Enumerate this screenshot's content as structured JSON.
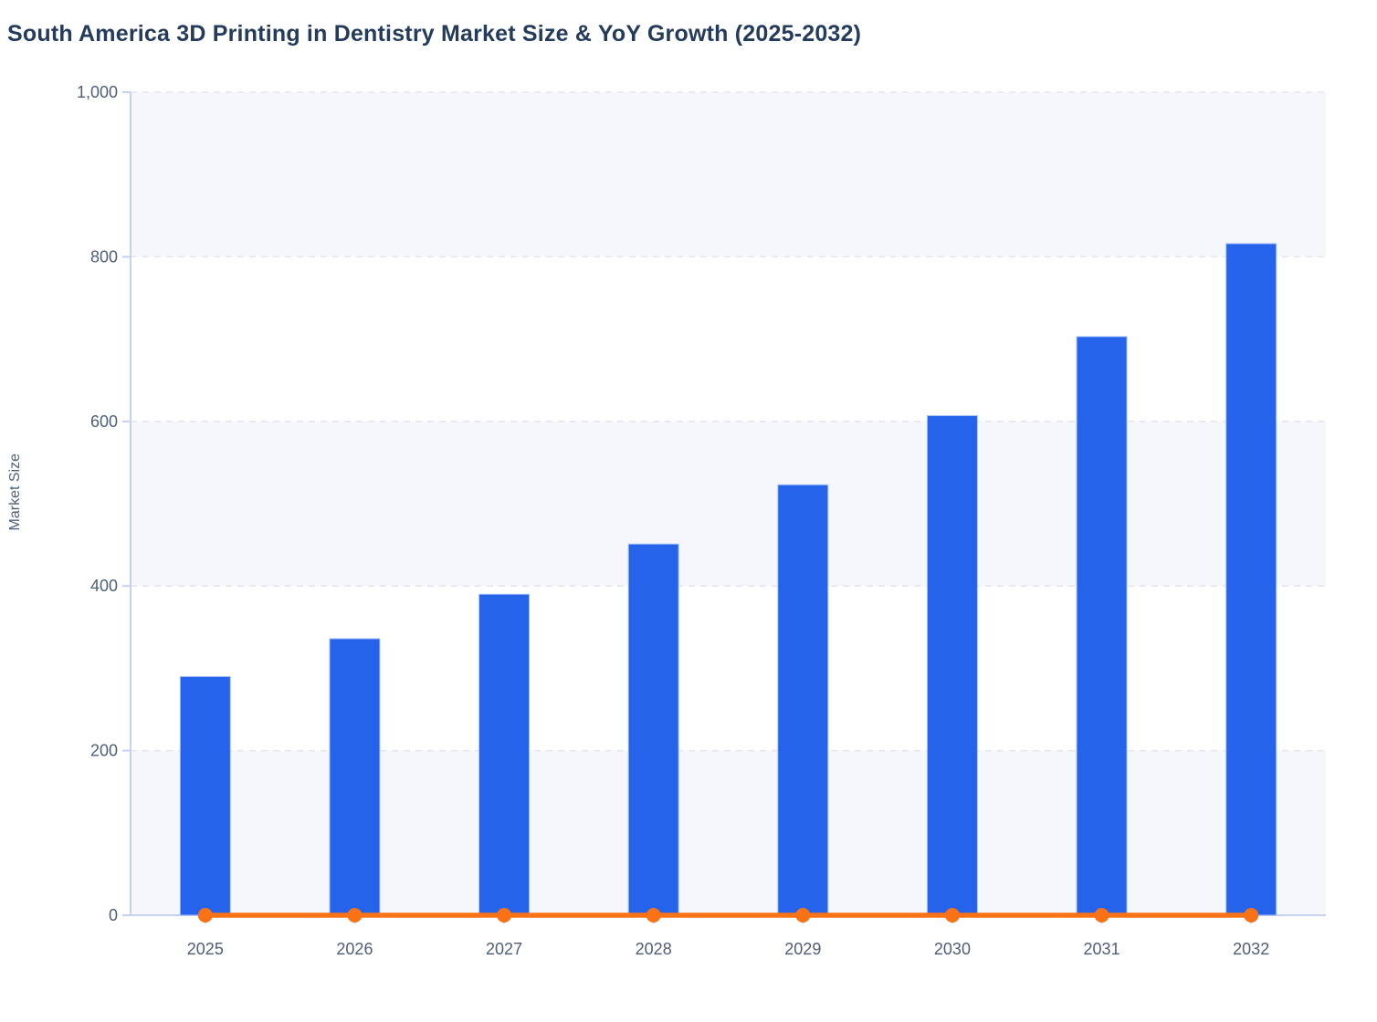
{
  "chart": {
    "title": "South America 3D Printing in Dentistry Market Size & YoY Growth (2025-2032)",
    "y_axis_title": "Market Size"
  },
  "chart_data": {
    "type": "bar",
    "title": "South America 3D Printing in Dentistry Market Size & YoY Growth (2025-2032)",
    "xlabel": "",
    "ylabel": "Market Size",
    "categories": [
      "2025",
      "2026",
      "2027",
      "2028",
      "2029",
      "2030",
      "2031",
      "2032"
    ],
    "series": [
      {
        "name": "Market Size",
        "type": "bar",
        "color": "#2563eb",
        "values": [
          290,
          336,
          390,
          451,
          523,
          607,
          703,
          816
        ]
      },
      {
        "name": "YoY Growth",
        "type": "line",
        "color": "#f97316",
        "values": [
          0,
          0,
          0,
          0,
          0,
          0,
          0,
          0
        ]
      }
    ],
    "ylim": [
      0,
      1000
    ],
    "yticks": [
      0,
      200,
      400,
      600,
      800,
      1000
    ],
    "ytick_labels": [
      "0",
      "200",
      "400",
      "600",
      "800",
      "1,000"
    ],
    "grid": "horizontal-dashed",
    "plot_bands": "alternating gray/white between gridlines starting at 0-200 gray",
    "legend_position": "none",
    "colors": {
      "bar": "#2563eb",
      "bar_edge": "#a9c3f7",
      "line": "#f97316",
      "axis": "#c6d1f0",
      "gridline": "#e3e6ec",
      "band": "#f6f7fa",
      "title_text": "#243b5c",
      "tick_text": "#4e5f75"
    }
  }
}
